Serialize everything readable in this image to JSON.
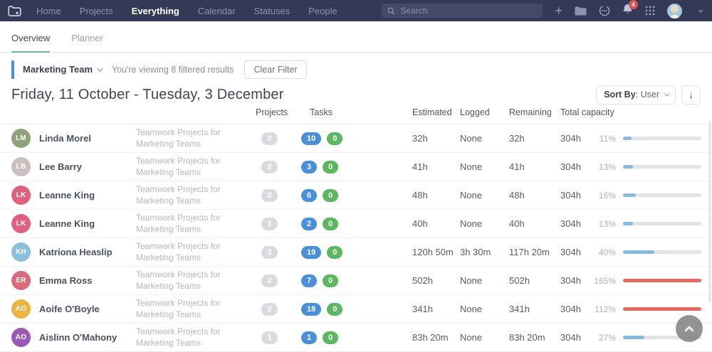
{
  "navbar": {
    "items": [
      {
        "label": "Home"
      },
      {
        "label": "Projects"
      },
      {
        "label": "Everything"
      },
      {
        "label": "Calendar"
      },
      {
        "label": "Statuses"
      },
      {
        "label": "People"
      }
    ],
    "active_item": "Everything",
    "search_placeholder": "Search",
    "notification_count": "4"
  },
  "tabs": [
    {
      "label": "Overview"
    },
    {
      "label": "Planner"
    }
  ],
  "active_tab": "Overview",
  "filter": {
    "team": "Marketing Team",
    "viewing": "You're viewing 8 filtered results",
    "clear": "Clear Filter"
  },
  "heading": {
    "date_range": "Friday, 11 October - Tuesday, 3 December"
  },
  "sort": {
    "label": "Sort By",
    "value": ": User"
  },
  "table": {
    "columns": [
      "Projects",
      "Tasks",
      "Estimated",
      "Logged",
      "Remaining",
      "Total capacity"
    ],
    "rows": [
      {
        "name": "Linda Morel",
        "initials": "LM",
        "avatar_color": "#8fa27b",
        "project": "Teamwork Projects for Marketing Teams",
        "projects": "2",
        "tasks_active": "10",
        "tasks_done": "0",
        "estimated": "32h",
        "logged": "None",
        "remaining": "32h",
        "total_capacity": "304h",
        "percent_label": "11%",
        "percent": 11,
        "over": false
      },
      {
        "name": "Lee Barry",
        "initials": "LB",
        "avatar_color": "#cbbfc0",
        "project": "Teamwork Projects for Marketing Teams",
        "projects": "2",
        "tasks_active": "3",
        "tasks_done": "0",
        "estimated": "41h",
        "logged": "None",
        "remaining": "41h",
        "total_capacity": "304h",
        "percent_label": "13%",
        "percent": 13,
        "over": false
      },
      {
        "name": "Leanne King",
        "initials": "LK",
        "avatar_color": "#e0617e",
        "project": "Teamwork Projects for Marketing Teams",
        "projects": "2",
        "tasks_active": "6",
        "tasks_done": "0",
        "estimated": "48h",
        "logged": "None",
        "remaining": "48h",
        "total_capacity": "304h",
        "percent_label": "16%",
        "percent": 16,
        "over": false
      },
      {
        "name": "Leanne King",
        "initials": "LK",
        "avatar_color": "#e0617e",
        "project": "Teamwork Projects for Marketing Teams",
        "projects": "1",
        "tasks_active": "2",
        "tasks_done": "0",
        "estimated": "40h",
        "logged": "None",
        "remaining": "40h",
        "total_capacity": "304h",
        "percent_label": "13%",
        "percent": 13,
        "over": false
      },
      {
        "name": "Katriona Heaslip",
        "initials": "KH",
        "avatar_color": "#8bc0da",
        "project": "Teamwork Projects for Marketing Teams",
        "projects": "3",
        "tasks_active": "19",
        "tasks_done": "0",
        "estimated": "120h 50m",
        "logged": "3h 30m",
        "remaining": "117h 20m",
        "total_capacity": "304h",
        "percent_label": "40%",
        "percent": 40,
        "over": false
      },
      {
        "name": "Emma Ross",
        "initials": "ER",
        "avatar_color": "#da6b7c",
        "project": "Teamwork Projects for Marketing Teams",
        "projects": "2",
        "tasks_active": "7",
        "tasks_done": "0",
        "estimated": "502h",
        "logged": "None",
        "remaining": "502h",
        "total_capacity": "304h",
        "percent_label": "165%",
        "percent": 165,
        "over": true
      },
      {
        "name": "Aoife O'Boyle",
        "initials": "AO",
        "avatar_color": "#e9b441",
        "project": "Teamwork Projects for Marketing Teams",
        "projects": "2",
        "tasks_active": "18",
        "tasks_done": "0",
        "estimated": "341h",
        "logged": "None",
        "remaining": "341h",
        "total_capacity": "304h",
        "percent_label": "112%",
        "percent": 112,
        "over": true
      },
      {
        "name": "Aislinn O'Mahony",
        "initials": "AO",
        "avatar_color": "#9b59b6",
        "project": "Teamwork Projects for Marketing Teams",
        "projects": "1",
        "tasks_active": "1",
        "tasks_done": "0",
        "estimated": "83h 20m",
        "logged": "None",
        "remaining": "83h 20m",
        "total_capacity": "304h",
        "percent_label": "27%",
        "percent": 27,
        "over": false
      }
    ]
  },
  "colors": {
    "navbar_bg": "#343a55",
    "accent_blue": "#4a90d9",
    "pill_blue": "#4a90d9",
    "pill_green": "#5cb860",
    "pill_gray": "#d8dadf",
    "bar_track": "#e2e3e5",
    "bar_normal": "#88bbdb",
    "bar_over": "#e26a60",
    "tab_underline": "#65b795",
    "badge_red": "#e05252"
  }
}
